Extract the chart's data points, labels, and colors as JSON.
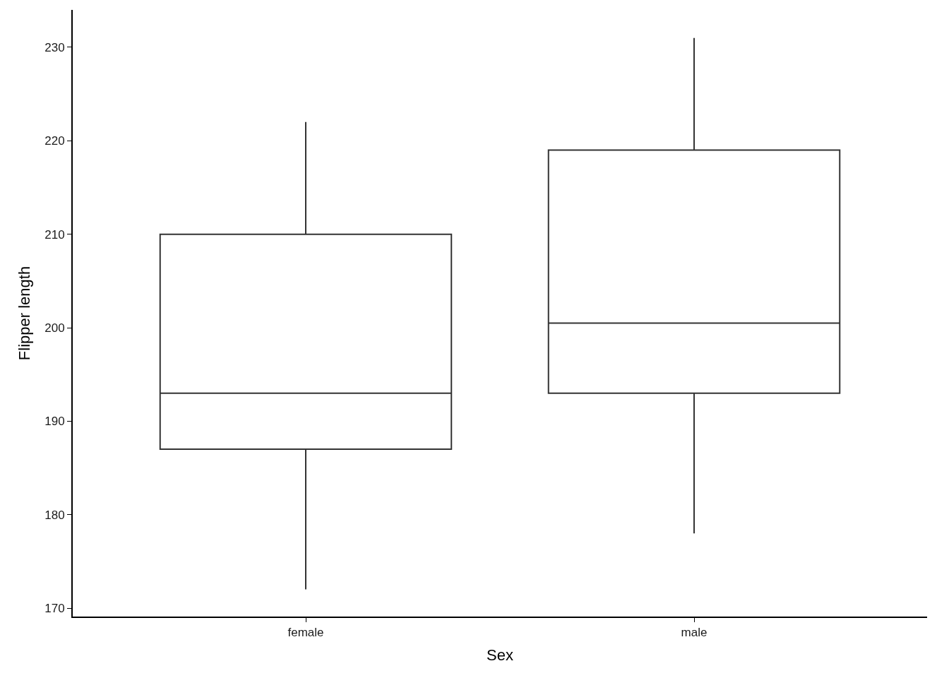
{
  "chart_data": {
    "type": "box",
    "xlabel": "Sex",
    "ylabel": "Flipper length",
    "categories": [
      "female",
      "male"
    ],
    "boxes": [
      {
        "low": 172,
        "q1": 187,
        "median": 193,
        "q3": 210,
        "high": 222
      },
      {
        "low": 178,
        "q1": 193,
        "median": 200.5,
        "q3": 219,
        "high": 231
      }
    ],
    "color": "#333333",
    "ylim": [
      169.1,
      234
    ],
    "yticks": [
      170,
      180,
      190,
      200,
      210,
      220,
      230
    ]
  }
}
